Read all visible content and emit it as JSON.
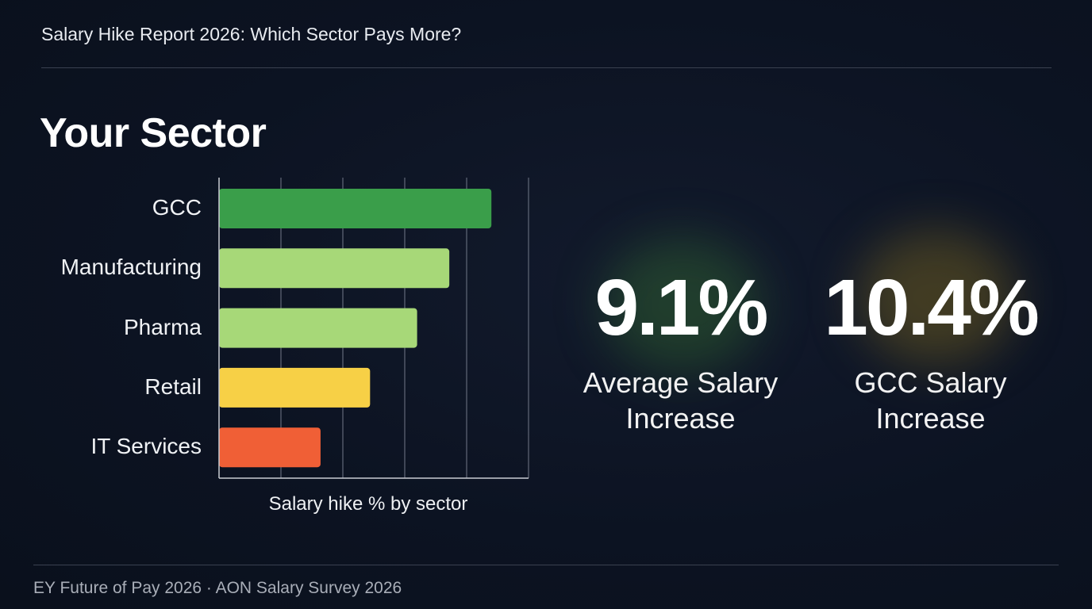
{
  "header": {
    "title": "Salary Hike Report 2026: Which Sector Pays More?"
  },
  "section_heading": "Your Sector",
  "chart_data": {
    "type": "bar",
    "orientation": "horizontal",
    "categories": [
      "GCC",
      "Manufacturing",
      "Pharma",
      "Retail",
      "IT Services"
    ],
    "values": [
      11.0,
      9.3,
      8.0,
      6.1,
      4.1
    ],
    "colors": [
      "#3a9e4a",
      "#a7d878",
      "#a7d878",
      "#f7d046",
      "#f05f36"
    ],
    "xlabel": "Salary hike % by sector",
    "ylabel": "",
    "xlim": [
      0,
      12.5
    ],
    "grid": true,
    "tick_labels_shown": false
  },
  "stats": [
    {
      "value": "9.1%",
      "label_line1": "Average Salary",
      "label_line2": "Increase",
      "glow_color": "#2f6b2f"
    },
    {
      "value": "10.4%",
      "label_line1": "GCC Salary",
      "label_line2": "Increase",
      "glow_color": "#6b5a1e"
    }
  ],
  "footer": {
    "source": "EY Future of Pay 2026 · AON Salary Survey 2026"
  }
}
